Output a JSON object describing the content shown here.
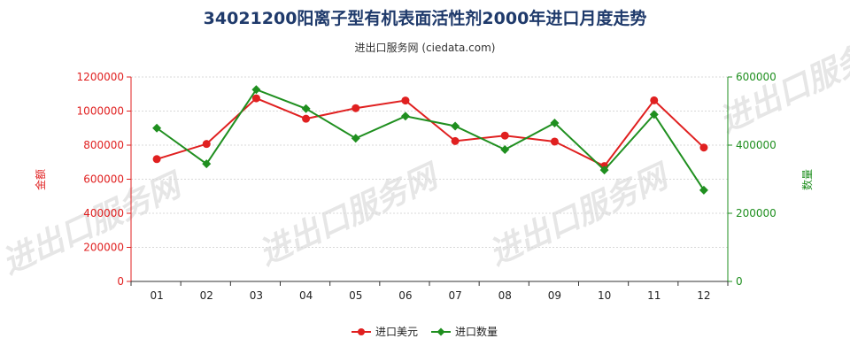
{
  "header": {
    "title": "34021200阳离子型有机表面活性剂2000年进口月度走势",
    "subtitle": "进出口服务网 (ciedata.com)"
  },
  "watermark": "进出口服务网",
  "colors": {
    "amount": "#e02020",
    "quantity": "#1f8f1f"
  },
  "chart_data": {
    "type": "line",
    "categories": [
      "01",
      "02",
      "03",
      "04",
      "05",
      "06",
      "07",
      "08",
      "09",
      "10",
      "11",
      "12"
    ],
    "y_left": {
      "label": "金额",
      "lim": [
        0,
        1200000
      ],
      "ticks": [
        0,
        200000,
        400000,
        600000,
        800000,
        1000000,
        1200000
      ]
    },
    "y_right": {
      "label": "数量",
      "lim": [
        0,
        600000
      ],
      "ticks": [
        0,
        200000,
        400000,
        600000
      ]
    },
    "series": [
      {
        "name": "进口美元",
        "axis": "left",
        "color": "#e02020",
        "values": [
          718000,
          807000,
          1075000,
          955000,
          1017000,
          1062000,
          824000,
          856000,
          821000,
          677000,
          1063000,
          786000
        ]
      },
      {
        "name": "进口数量",
        "axis": "right",
        "color": "#1f8f1f",
        "values": [
          450000,
          345000,
          563000,
          507000,
          420000,
          485000,
          456000,
          387000,
          465000,
          327000,
          490000,
          268000
        ]
      }
    ],
    "legend": "bottom-center",
    "grid": true
  }
}
